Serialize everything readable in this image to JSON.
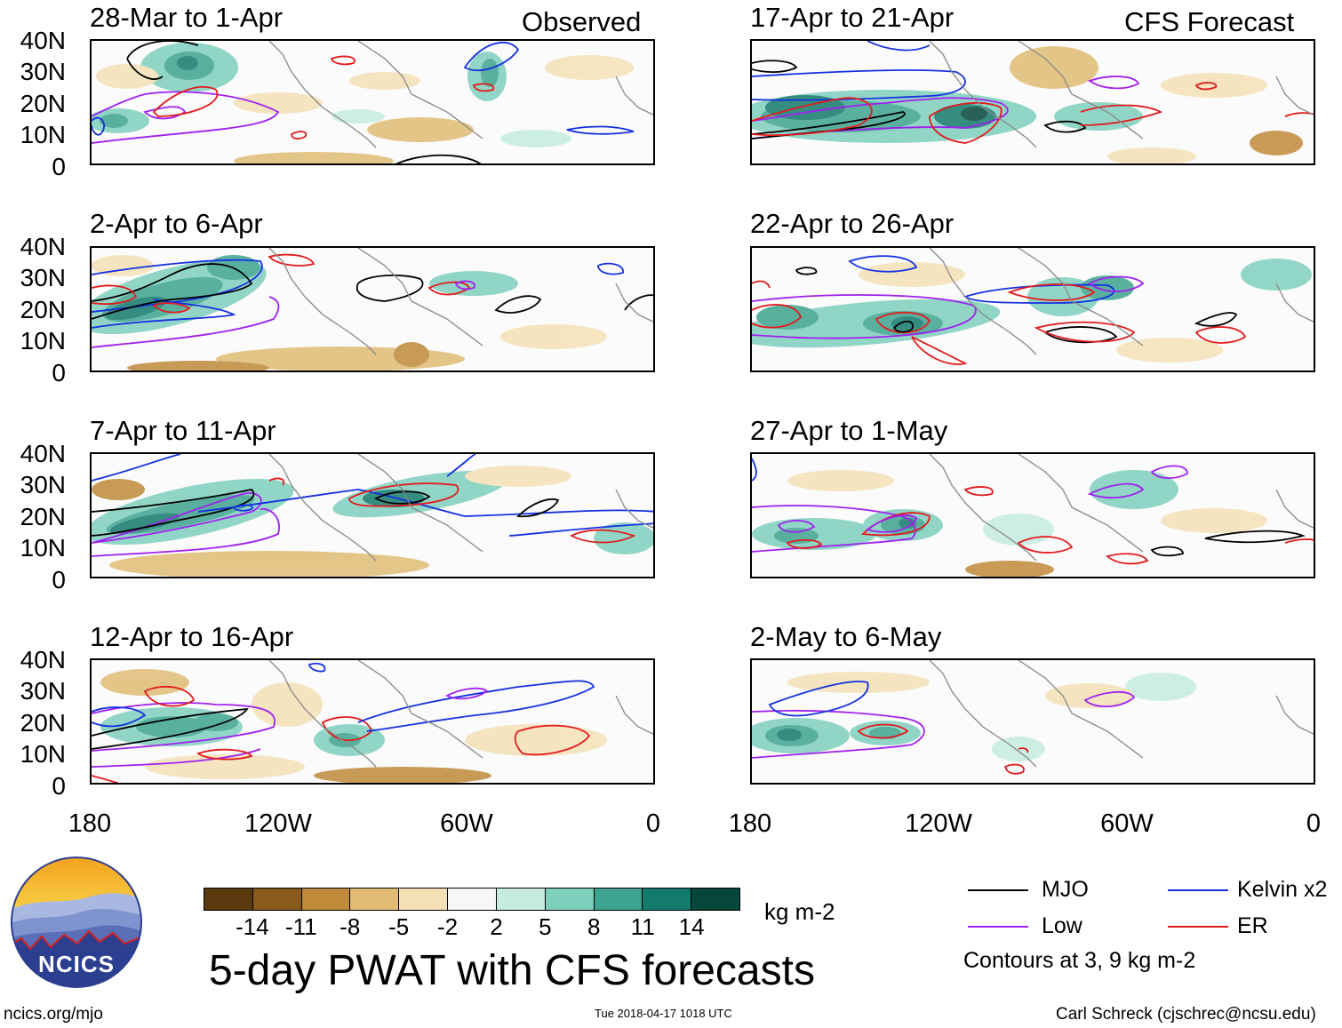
{
  "columns": {
    "left_header": "Observed",
    "right_header": "CFS Forecast"
  },
  "panels": {
    "l1": "28-Mar to 1-Apr",
    "l2": "2-Apr to 6-Apr",
    "l3": "7-Apr to 11-Apr",
    "l4": "12-Apr to 16-Apr",
    "r1": "17-Apr to 21-Apr",
    "r2": "22-Apr to 26-Apr",
    "r3": "27-Apr to 1-May",
    "r4": "2-May to 6-May"
  },
  "lat_labels": [
    "40N",
    "30N",
    "20N",
    "10N",
    "0"
  ],
  "lon_labels": [
    "180",
    "120W",
    "60W",
    "0"
  ],
  "colorbar": {
    "colors": [
      "#5c3a10",
      "#8a5a1a",
      "#bf8a3a",
      "#e0bc75",
      "#f3e0b6",
      "#f7f7f7",
      "#c6ece1",
      "#7fcfbd",
      "#3ea390",
      "#137a6c",
      "#05473b"
    ],
    "labels": [
      "-14",
      "-11",
      "-8",
      "-5",
      "-2",
      "2",
      "5",
      "8",
      "11",
      "14"
    ],
    "units": "kg m-2"
  },
  "legend": {
    "items": [
      {
        "label": "MJO",
        "color": "#000000"
      },
      {
        "label": "Kelvin x2",
        "color": "#1431e0"
      },
      {
        "label": "Low",
        "color": "#a020f0"
      },
      {
        "label": "ER",
        "color": "#e31a1c"
      }
    ],
    "note": "Contours at 3, 9 kg m-2"
  },
  "title": "5-day PWAT with CFS forecasts",
  "logo": {
    "text": "NCICS"
  },
  "footer": {
    "url": "ncics.org/mjo",
    "timestamp": "Tue 2018-04-17 1018 UTC",
    "credit": "Carl Schreck (cjschrec@ncsu.edu)"
  }
}
